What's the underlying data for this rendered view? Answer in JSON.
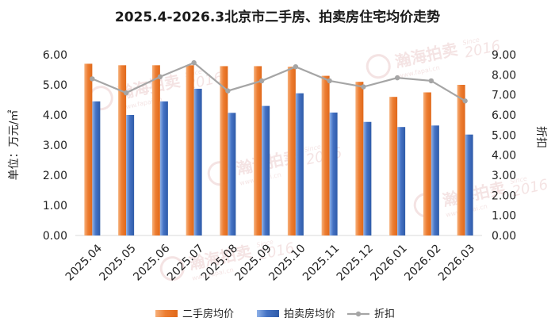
{
  "chart_data": {
    "type": "bar+line",
    "title": "2025.4-2026.3北京市二手房、拍卖房住宅均价走势",
    "categories": [
      "2025.04",
      "2025.05",
      "2025.06",
      "2025.07",
      "2025.08",
      "2025.09",
      "2025.10",
      "2025.11",
      "2025.12",
      "2026.01",
      "2026.02",
      "2026.03"
    ],
    "left_axis": {
      "label": "单位：万元/㎡",
      "range": [
        0,
        6
      ],
      "ticks": [
        "0.00",
        "1.00",
        "2.00",
        "3.00",
        "4.00",
        "5.00",
        "6.00"
      ]
    },
    "right_axis": {
      "label": "折扣",
      "range": [
        0,
        9
      ],
      "ticks": [
        "0.00",
        "1.00",
        "2.00",
        "3.00",
        "4.00",
        "5.00",
        "6.00",
        "7.00",
        "8.00",
        "9.00"
      ]
    },
    "series": [
      {
        "name": "二手房均价",
        "kind": "bar",
        "axis": "left",
        "color": "#ed7d31",
        "values": [
          5.7,
          5.65,
          5.65,
          5.65,
          5.62,
          5.62,
          5.6,
          5.3,
          5.1,
          4.6,
          4.75,
          5.0
        ]
      },
      {
        "name": "拍卖房均价",
        "kind": "bar",
        "axis": "left",
        "color": "#4472c4",
        "values": [
          4.45,
          4.0,
          4.45,
          4.87,
          4.07,
          4.3,
          4.72,
          4.08,
          3.77,
          3.6,
          3.65,
          3.35
        ]
      },
      {
        "name": "折扣",
        "kind": "line",
        "axis": "right",
        "color": "#a5a5a5",
        "values": [
          7.8,
          7.1,
          7.9,
          8.6,
          7.2,
          7.7,
          8.4,
          7.7,
          7.4,
          7.85,
          7.7,
          6.7
        ]
      }
    ],
    "watermark": {
      "brand": "瀚海拍卖",
      "since": "Since",
      "year": "2016",
      "site": "www.fapai.cn"
    }
  }
}
